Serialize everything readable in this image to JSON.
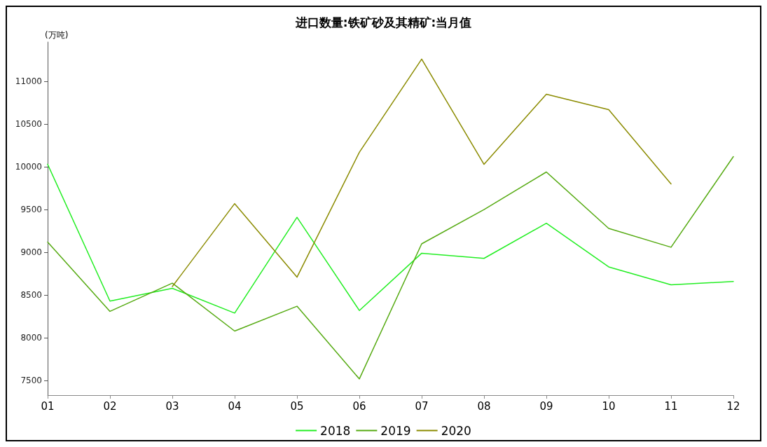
{
  "chart_data": {
    "type": "line",
    "title": "进口数量:铁矿砂及其精矿:当月值",
    "ylabel": "(万吨)",
    "categories": [
      "01",
      "02",
      "03",
      "04",
      "05",
      "06",
      "07",
      "08",
      "09",
      "10",
      "11",
      "12"
    ],
    "series": [
      {
        "name": "2018",
        "color": "#22ee22",
        "values": [
          10030,
          8430,
          8580,
          8290,
          9410,
          8320,
          8990,
          8930,
          9340,
          8830,
          8620,
          8660
        ]
      },
      {
        "name": "2019",
        "color": "#55aa11",
        "values": [
          9120,
          8310,
          8640,
          8080,
          8370,
          7520,
          9100,
          9500,
          9940,
          9280,
          9060,
          10120
        ]
      },
      {
        "name": "2020",
        "color": "#8b8b00",
        "values": [
          null,
          null,
          8600,
          9570,
          8710,
          10170,
          11260,
          10030,
          10850,
          10670,
          9800,
          null
        ]
      }
    ],
    "ylim": [
      7330,
      11460
    ],
    "yticks": [
      7500,
      8000,
      8500,
      9000,
      9500,
      10000,
      10500,
      11000
    ],
    "grid": false,
    "legend": "bottom",
    "marker": "none",
    "line_style": "solid"
  }
}
